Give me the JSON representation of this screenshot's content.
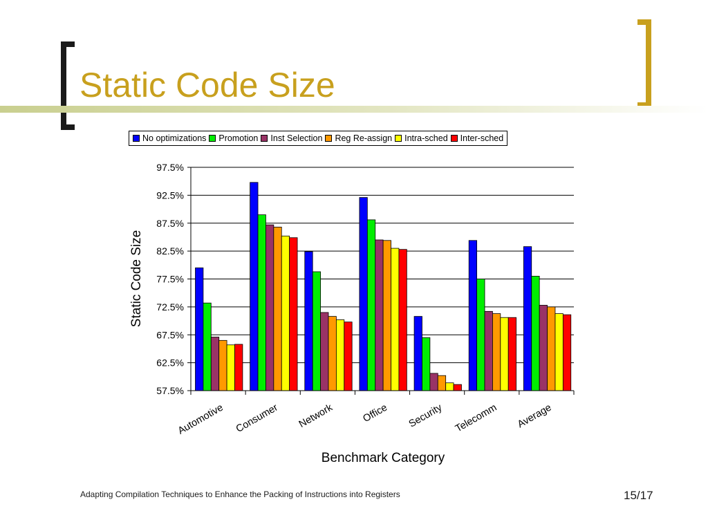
{
  "slide": {
    "title": "Static Code Size",
    "footer": "Adapting Compilation Techniques to Enhance the Packing of Instructions into Registers",
    "page_number": "15/17"
  },
  "chart_data": {
    "type": "bar",
    "title": "",
    "xlabel": "Benchmark Category",
    "ylabel": "Static Code Size",
    "ylim": [
      57.5,
      97.5
    ],
    "yticks": [
      "57.5%",
      "62.5%",
      "67.5%",
      "72.5%",
      "77.5%",
      "82.5%",
      "87.5%",
      "92.5%",
      "97.5%"
    ],
    "grid": true,
    "legend_position": "top",
    "categories": [
      "Automotive",
      "Consumer",
      "Network",
      "Office",
      "Security",
      "Telecomm",
      "Average"
    ],
    "series": [
      {
        "name": "No optimizations",
        "color": "#0000ff",
        "values": [
          79.5,
          94.8,
          82.4,
          92.1,
          70.8,
          84.4,
          83.3
        ]
      },
      {
        "name": "Promotion",
        "color": "#00ee00",
        "values": [
          73.2,
          89.0,
          78.8,
          88.1,
          67.0,
          77.5,
          78.0
        ]
      },
      {
        "name": "Inst Selection",
        "color": "#993366",
        "values": [
          67.1,
          87.2,
          71.5,
          84.5,
          60.6,
          71.7,
          72.8
        ]
      },
      {
        "name": "Reg Re-assign",
        "color": "#ff9900",
        "values": [
          66.5,
          86.8,
          70.8,
          84.4,
          60.2,
          71.3,
          72.5
        ]
      },
      {
        "name": "Intra-sched",
        "color": "#ffff00",
        "values": [
          65.7,
          85.2,
          70.2,
          83.0,
          58.9,
          70.6,
          71.3
        ]
      },
      {
        "name": "Inter-sched",
        "color": "#ff0000",
        "values": [
          65.8,
          84.9,
          69.8,
          82.8,
          58.6,
          70.6,
          71.1
        ]
      }
    ]
  }
}
